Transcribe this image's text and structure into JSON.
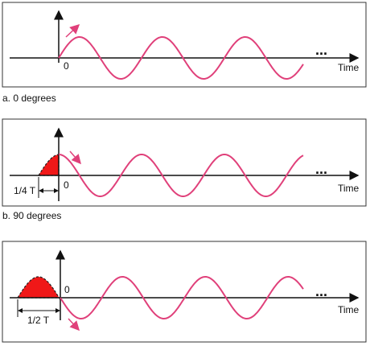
{
  "panels": [
    {
      "zero_label": "0",
      "axis_label": "Time",
      "ellipsis": "...",
      "caption": "a. 0 degrees"
    },
    {
      "zero_label": "0",
      "axis_label": "Time",
      "ellipsis": "...",
      "caption": "b. 90 degrees",
      "shift_label": "1/4 T"
    },
    {
      "zero_label": "0",
      "axis_label": "Time",
      "ellipsis": "...",
      "shift_label": "1/2 T"
    }
  ]
}
